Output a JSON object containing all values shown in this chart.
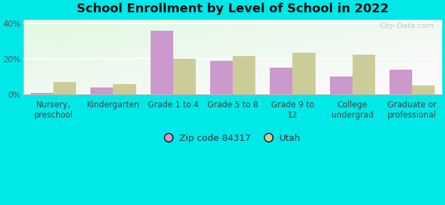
{
  "title": "School Enrollment by Level of School in 2022",
  "categories": [
    "Nursery,\npreschool",
    "Kindergarten",
    "Grade 1 to 4",
    "Grade 5 to 8",
    "Grade 9 to\n12",
    "College\nundergrad",
    "Graduate or\nprofessional"
  ],
  "zip_values": [
    1.0,
    4.0,
    36.0,
    19.0,
    15.0,
    10.0,
    14.0
  ],
  "utah_values": [
    7.0,
    6.0,
    20.0,
    21.5,
    23.5,
    22.5,
    5.0
  ],
  "zip_color": "#cc99cc",
  "utah_color": "#cccc99",
  "background_color": "#00e8e8",
  "ylim": [
    0,
    42
  ],
  "yticks": [
    0,
    20,
    40
  ],
  "ytick_labels": [
    "0%",
    "20%",
    "40%"
  ],
  "legend_zip_label": "Zip code 84317",
  "legend_utah_label": "Utah",
  "watermark": "City-Data.com",
  "bar_width": 0.38,
  "title_fontsize": 13,
  "axis_fontsize": 8.5,
  "legend_fontsize": 9.5
}
